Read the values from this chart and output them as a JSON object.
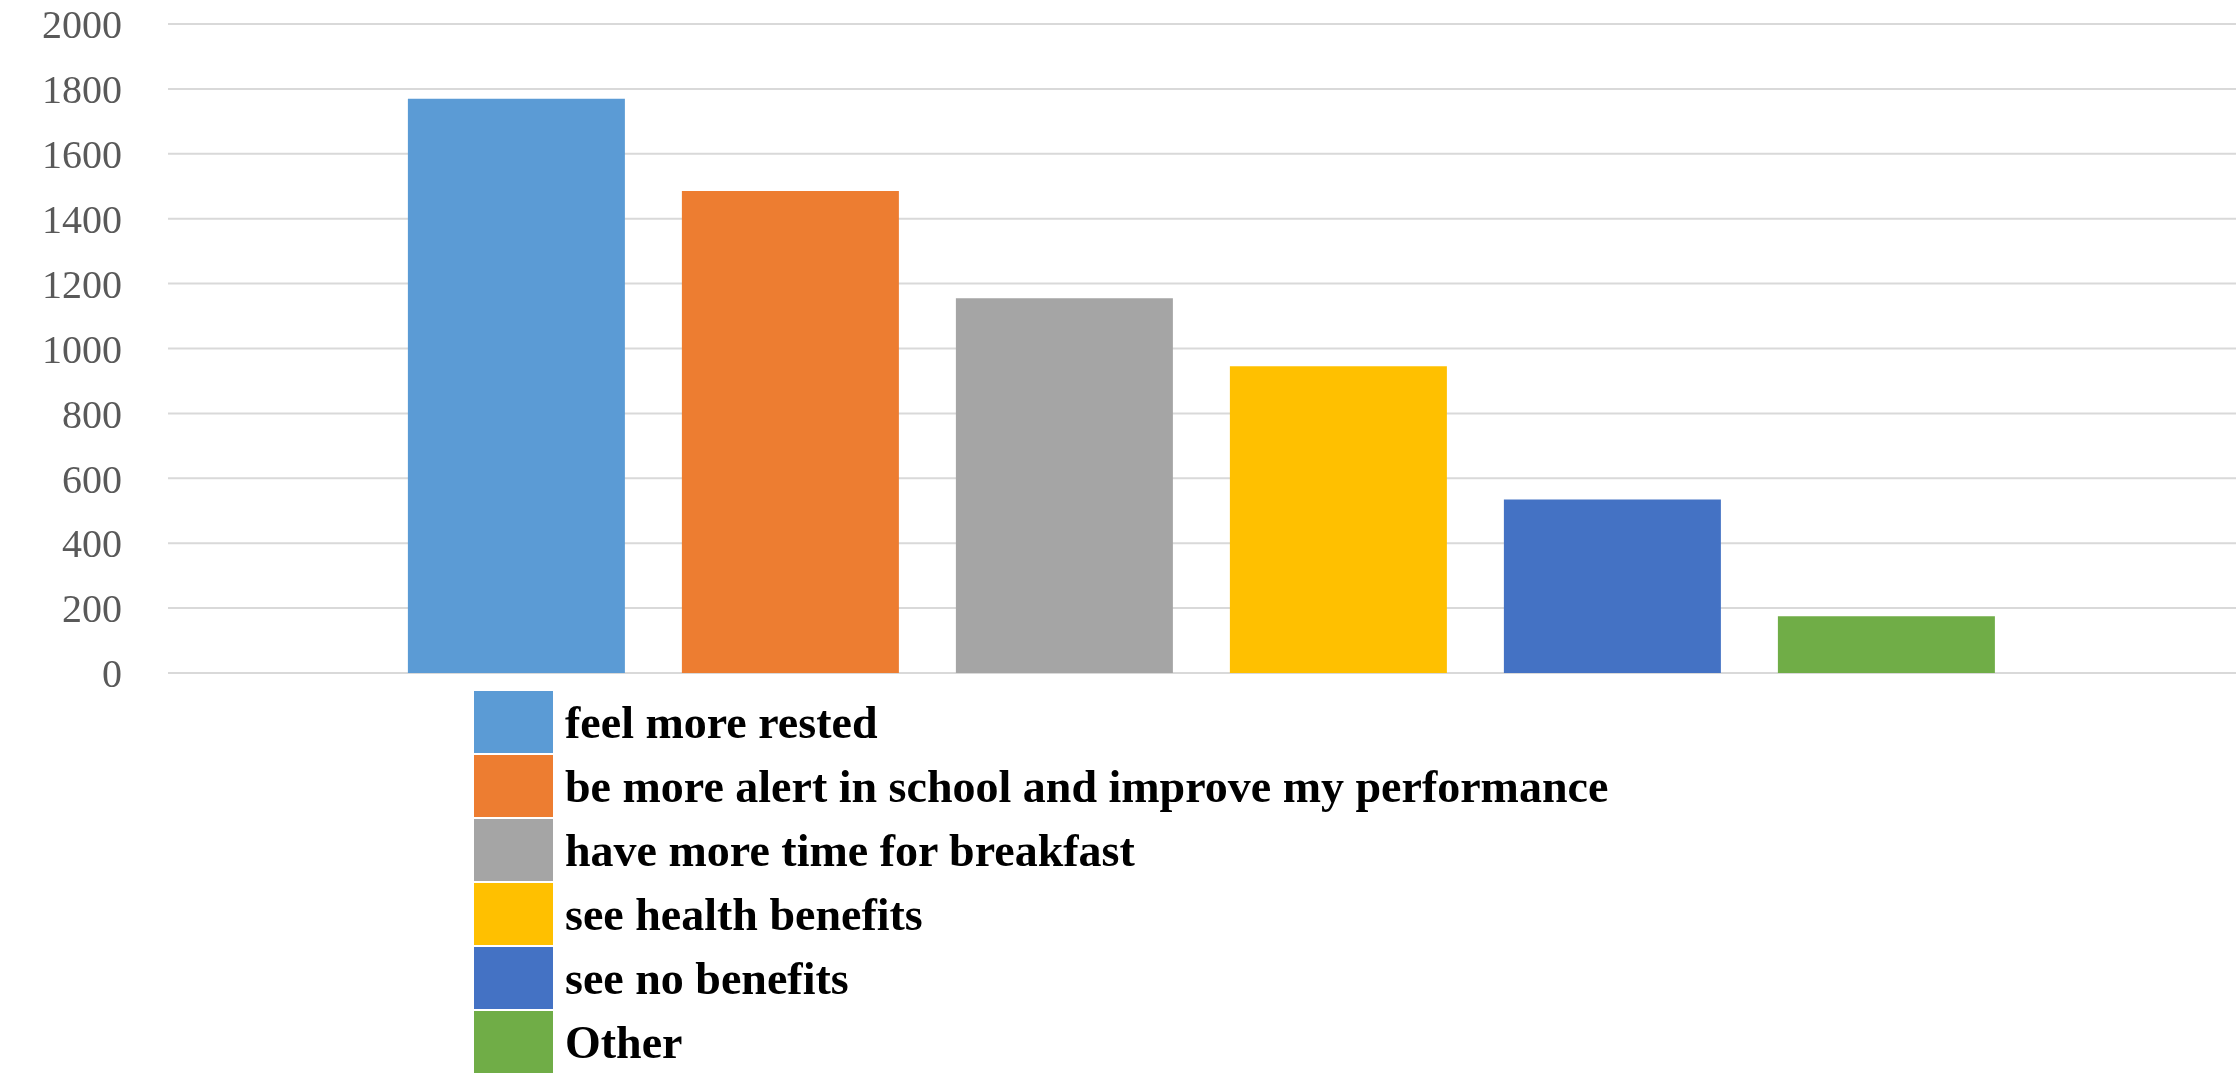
{
  "chart_data": {
    "type": "bar",
    "categories": [
      null
    ],
    "series": [
      {
        "name": "feel more rested",
        "color": "#5b9bd5",
        "values": [
          1770
        ]
      },
      {
        "name": "be more alert in school and improve my performance",
        "color": "#ed7d31",
        "values": [
          1485
        ]
      },
      {
        "name": "have more time for breakfast",
        "color": "#a5a5a5",
        "values": [
          1155
        ]
      },
      {
        "name": "see health benefits",
        "color": "#ffc000",
        "values": [
          945
        ]
      },
      {
        "name": "see no benefits",
        "color": "#4472c4",
        "values": [
          535
        ]
      },
      {
        "name": "Other",
        "color": "#70ad47",
        "values": [
          175
        ]
      }
    ],
    "ylim": [
      0,
      2000
    ],
    "yticks": [
      0,
      200,
      400,
      600,
      800,
      1000,
      1200,
      1400,
      1600,
      1800,
      2000
    ],
    "grid": "y",
    "legend": "bottom"
  }
}
